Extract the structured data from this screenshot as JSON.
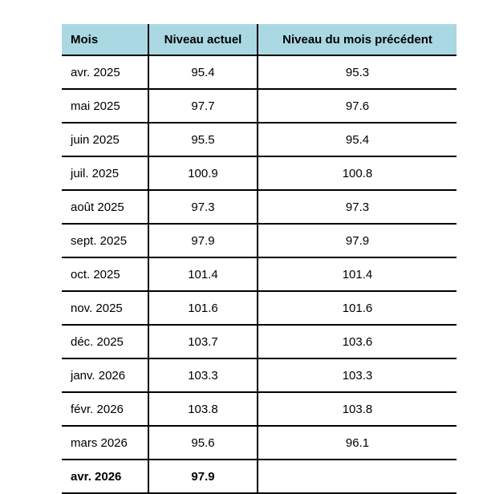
{
  "table": {
    "headers": [
      "Mois",
      "Niveau actuel",
      "Niveau du mois précédent"
    ],
    "rows": [
      {
        "month": "avr. 2025",
        "current": "95.4",
        "previous": "95.3"
      },
      {
        "month": "mai 2025",
        "current": "97.7",
        "previous": "97.6"
      },
      {
        "month": "juin 2025",
        "current": "95.5",
        "previous": "95.4"
      },
      {
        "month": "juil. 2025",
        "current": "100.9",
        "previous": "100.8"
      },
      {
        "month": "août 2025",
        "current": "97.3",
        "previous": "97.3"
      },
      {
        "month": "sept. 2025",
        "current": "97.9",
        "previous": "97.9"
      },
      {
        "month": "oct. 2025",
        "current": "101.4",
        "previous": "101.4"
      },
      {
        "month": "nov. 2025",
        "current": "101.6",
        "previous": "101.6"
      },
      {
        "month": "déc. 2025",
        "current": "103.7",
        "previous": "103.6"
      },
      {
        "month": "janv. 2026",
        "current": "103.3",
        "previous": "103.3"
      },
      {
        "month": "févr. 2026",
        "current": "103.8",
        "previous": "103.8"
      },
      {
        "month": "mars 2026",
        "current": "95.6",
        "previous": "96.1"
      },
      {
        "month": "avr. 2026",
        "current": "97.9",
        "previous": ""
      }
    ]
  },
  "colors": {
    "header_background": "#aad8e2",
    "rule": "#000000"
  }
}
